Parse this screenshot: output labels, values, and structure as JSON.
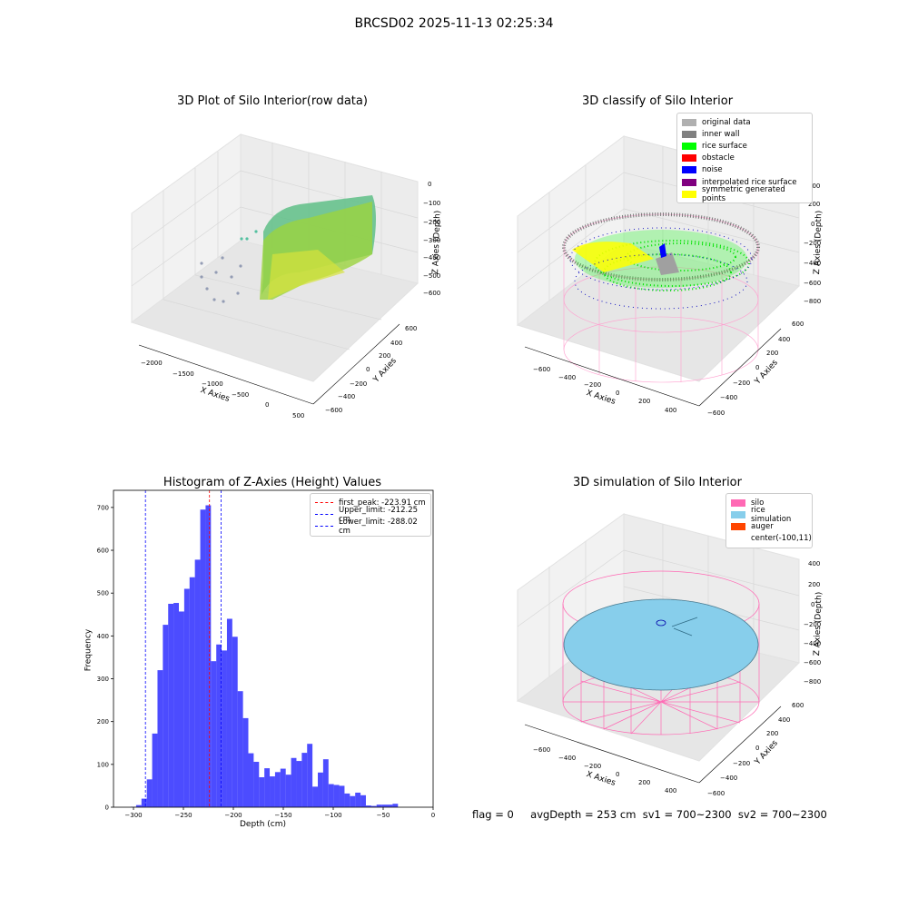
{
  "suptitle": "BRCSD02 2025-11-13 02:25:34",
  "panels": {
    "raw": {
      "title": "3D Plot of Silo Interior(row data)",
      "xlabel": "X Axies",
      "ylabel": "Y Axies",
      "zlabel": "Z Axies (Depth)",
      "xticks": [
        "−2000",
        "−1500",
        "−1000",
        "−500",
        "0",
        "500"
      ],
      "yticks": [
        "600",
        "400",
        "200",
        "0",
        "−200",
        "−400",
        "−600"
      ],
      "zticks": [
        "0",
        "−100",
        "−200",
        "−300",
        "−400",
        "−500",
        "−600"
      ]
    },
    "classify": {
      "title": "3D classify of Silo Interior",
      "xlabel": "X Axies",
      "ylabel": "Y Axies",
      "zlabel": "Z Axies (Depth)",
      "xticks": [
        "−600",
        "−400",
        "−200",
        "0",
        "200",
        "400"
      ],
      "yticks": [
        "600",
        "400",
        "200",
        "0",
        "−200",
        "−400",
        "−600"
      ],
      "zticks": [
        "200",
        "0",
        "−200",
        "−400",
        "−600",
        "−800"
      ],
      "ztop": "400",
      "legend": [
        {
          "label": "original data",
          "color": "#b0b0b0"
        },
        {
          "label": "inner wall",
          "color": "#808080"
        },
        {
          "label": "rice surface",
          "color": "#00ff00"
        },
        {
          "label": "obstacle",
          "color": "#ff0000"
        },
        {
          "label": "noise",
          "color": "#0000ff"
        },
        {
          "label": "interpolated rice surface",
          "color": "#800080"
        },
        {
          "label": "symmetric generated points",
          "color": "#ffff00"
        }
      ]
    },
    "simulation": {
      "title": "3D simulation of Silo Interior",
      "xlabel": "X Axies",
      "ylabel": "Y Axies",
      "zlabel": "Z Axies (Depth)",
      "xticks": [
        "−600",
        "−400",
        "−200",
        "0",
        "200",
        "400"
      ],
      "yticks": [
        "600",
        "400",
        "200",
        "0",
        "−200",
        "−400",
        "−600"
      ],
      "zticks": [
        "400",
        "200",
        "0",
        "−200",
        "−400",
        "−600",
        "−800"
      ],
      "legend": [
        {
          "label": "silo",
          "color": "#ff69b4"
        },
        {
          "label": "rice simulation",
          "color": "#87ceeb"
        },
        {
          "label": "auger",
          "color": "#ff4500"
        },
        {
          "label": "center(-100,11)",
          "color": ""
        }
      ]
    }
  },
  "status": {
    "flag": "flag = 0",
    "avg": "avgDepth = 253 cm  sv1 = 700~2300  sv2 = 700~2300"
  },
  "chart_data": {
    "type": "bar",
    "title": "Histogram of Z-Axies (Height) Values",
    "xlabel": "Depth (cm)",
    "ylabel": "Frequency",
    "xlim": [
      -320,
      0
    ],
    "ylim": [
      0,
      740
    ],
    "xticks": [
      -300,
      -250,
      -200,
      -150,
      -100,
      -50,
      0
    ],
    "yticks": [
      0,
      100,
      200,
      300,
      400,
      500,
      600,
      700
    ],
    "bin_width": 5.35,
    "bin_start": -302.7,
    "values": [
      1,
      5,
      20,
      65,
      172,
      320,
      426,
      475,
      477,
      457,
      510,
      537,
      578,
      695,
      705,
      341,
      380,
      366,
      440,
      398,
      271,
      208,
      126,
      106,
      70,
      91,
      72,
      82,
      90,
      76,
      115,
      108,
      127,
      148,
      48,
      81,
      112,
      54,
      52,
      50,
      32,
      26,
      34,
      28,
      4,
      3,
      6,
      6,
      6,
      8
    ],
    "color": "#0000ff",
    "vlines": [
      {
        "label": "first_peak: -223.91 cm",
        "x": -223.91,
        "color": "#ff0000"
      },
      {
        "label": "Upper_limit: -212.25 cm",
        "x": -212.25,
        "color": "#0000ff"
      },
      {
        "label": "Lower_limit: -288.02 cm",
        "x": -288.02,
        "color": "#0000ff"
      }
    ]
  }
}
